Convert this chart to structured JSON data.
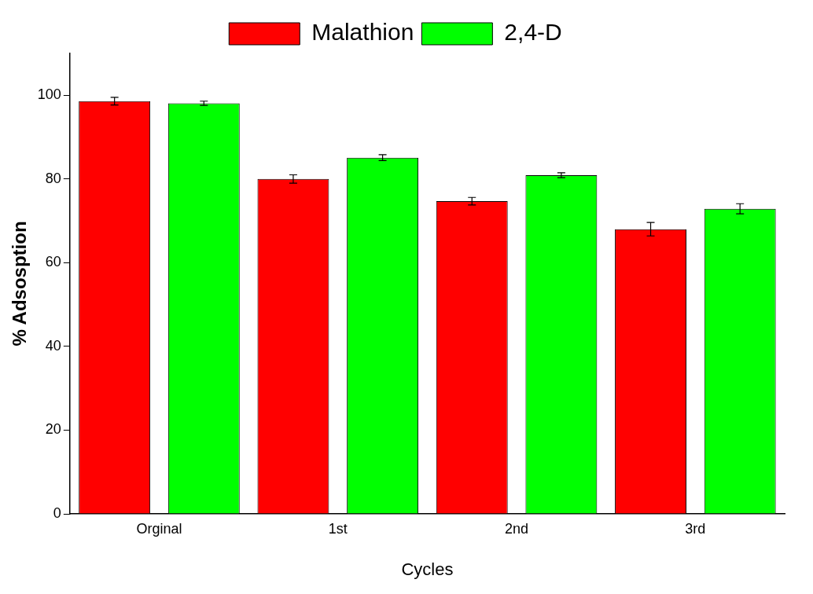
{
  "chart_data": {
    "type": "bar",
    "xlabel": "Cycles",
    "ylabel": "% Adsosption",
    "categories": [
      "Orginal",
      "1st",
      "2nd",
      "3rd"
    ],
    "series": [
      {
        "name": "Malathion",
        "color": "#ff0000",
        "values": [
          98.6,
          80.0,
          74.7,
          68.0
        ],
        "errors": [
          0.9,
          1.0,
          0.9,
          1.6
        ]
      },
      {
        "name": "2,4-D",
        "color": "#00ff00",
        "values": [
          98.1,
          85.1,
          80.9,
          72.9
        ],
        "errors": [
          0.5,
          0.7,
          0.6,
          1.2
        ]
      }
    ],
    "ylim": [
      0,
      110
    ],
    "yticks": [
      0,
      20,
      40,
      60,
      80,
      100
    ],
    "legend": "top",
    "grid": false
  }
}
